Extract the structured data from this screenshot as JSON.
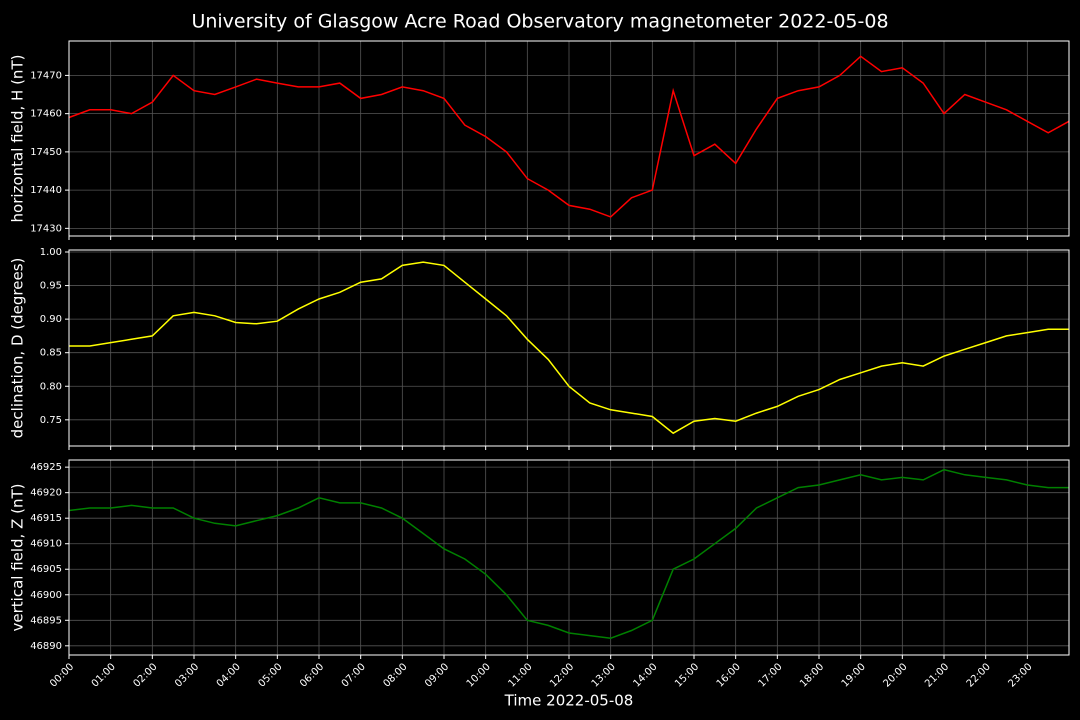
{
  "title": "University of Glasgow Acre Road Observatory magnetometer 2022-05-08",
  "x_axis": {
    "label": "Time 2022-05-08",
    "lim": [
      0,
      24
    ],
    "grid": true,
    "ticks": [
      {
        "value": 0,
        "label": "00:00"
      },
      {
        "value": 1,
        "label": "01:00"
      },
      {
        "value": 2,
        "label": "02:00"
      },
      {
        "value": 3,
        "label": "03:00"
      },
      {
        "value": 4,
        "label": "04:00"
      },
      {
        "value": 5,
        "label": "05:00"
      },
      {
        "value": 6,
        "label": "06:00"
      },
      {
        "value": 7,
        "label": "07:00"
      },
      {
        "value": 8,
        "label": "08:00"
      },
      {
        "value": 9,
        "label": "09:00"
      },
      {
        "value": 10,
        "label": "10:00"
      },
      {
        "value": 11,
        "label": "11:00"
      },
      {
        "value": 12,
        "label": "12:00"
      },
      {
        "value": 13,
        "label": "13:00"
      },
      {
        "value": 14,
        "label": "14:00"
      },
      {
        "value": 15,
        "label": "15:00"
      },
      {
        "value": 16,
        "label": "16:00"
      },
      {
        "value": 17,
        "label": "17:00"
      },
      {
        "value": 18,
        "label": "18:00"
      },
      {
        "value": 19,
        "label": "19:00"
      },
      {
        "value": 20,
        "label": "20:00"
      },
      {
        "value": 21,
        "label": "21:00"
      },
      {
        "value": 22,
        "label": "22:00"
      },
      {
        "value": 23,
        "label": "23:00"
      }
    ],
    "x": [
      0,
      0.5,
      1,
      1.5,
      2,
      2.5,
      3,
      3.5,
      4,
      4.5,
      5,
      5.5,
      6,
      6.5,
      7,
      7.5,
      8,
      8.5,
      9,
      9.5,
      10,
      10.5,
      11,
      11.5,
      12,
      12.5,
      13,
      13.5,
      14,
      14.5,
      15,
      15.5,
      16,
      16.5,
      17,
      17.5,
      18,
      18.5,
      19,
      19.5,
      20,
      20.5,
      21,
      21.5,
      22,
      22.5,
      23,
      23.5,
      24
    ]
  },
  "chart_data": [
    {
      "type": "line",
      "ylabel": "horizontal field, H (nT)",
      "ylim": [
        17428,
        17479
      ],
      "yticks": [
        17430,
        17440,
        17450,
        17460,
        17470
      ],
      "grid": true,
      "series": [
        {
          "color": "#ff0000",
          "values": [
            17459,
            17461,
            17461,
            17460,
            17463,
            17470,
            17466,
            17465,
            17467,
            17469,
            17468,
            17467,
            17467,
            17468,
            17464,
            17465,
            17467,
            17466,
            17464,
            17457,
            17454,
            17450,
            17443,
            17440,
            17436,
            17435,
            17433,
            17438,
            17440,
            17466,
            17449,
            17452,
            17447,
            17456,
            17464,
            17466,
            17467,
            17470,
            17475,
            17471,
            17472,
            17468,
            17460,
            17465,
            17463,
            17461,
            17458,
            17455,
            17458
          ]
        }
      ]
    },
    {
      "type": "line",
      "ylabel": "declination, D (degrees)",
      "ylim": [
        0.711,
        1.003
      ],
      "yticks": [
        0.75,
        {
          "value": 0.8,
          "label": "0.80"
        },
        0.85,
        {
          "value": 0.9,
          "label": "0.90"
        },
        0.95,
        {
          "value": 1,
          "label": "1.00"
        }
      ],
      "grid": true,
      "series": [
        {
          "color": "#ffff00",
          "values": [
            0.86,
            0.86,
            0.865,
            0.87,
            0.875,
            0.905,
            0.91,
            0.905,
            0.895,
            0.893,
            0.897,
            0.915,
            0.93,
            0.94,
            0.955,
            0.96,
            0.98,
            0.985,
            0.98,
            0.955,
            0.93,
            0.905,
            0.87,
            0.84,
            0.8,
            0.775,
            0.765,
            0.76,
            0.755,
            0.73,
            0.748,
            0.752,
            0.748,
            0.76,
            0.77,
            0.785,
            0.795,
            0.81,
            0.82,
            0.83,
            0.835,
            0.83,
            0.845,
            0.855,
            0.865,
            0.875,
            0.88,
            0.885,
            0.885
          ]
        }
      ]
    },
    {
      "type": "line",
      "ylabel": "vertical field, Z (nT)",
      "ylim": [
        46888.2,
        46926.4
      ],
      "yticks": [
        46890,
        46895,
        46900,
        46905,
        46910,
        46915,
        46920,
        46925
      ],
      "grid": true,
      "series": [
        {
          "color": "#008000",
          "values": [
            46916.5,
            46917,
            46917,
            46917.5,
            46917,
            46917,
            46915,
            46914,
            46913.5,
            46914.5,
            46915.5,
            46917,
            46919,
            46918,
            46918,
            46917,
            46915,
            46912,
            46909,
            46907,
            46904,
            46900,
            46895,
            46894,
            46892.5,
            46892,
            46891.5,
            46893,
            46895,
            46905,
            46907,
            46910,
            46913,
            46917,
            46919,
            46921,
            46921.5,
            46922.5,
            46923.5,
            46922.5,
            46923,
            46922.5,
            46924.5,
            46923.5,
            46923,
            46922.5,
            46921.5,
            46921,
            46921
          ]
        }
      ]
    }
  ]
}
